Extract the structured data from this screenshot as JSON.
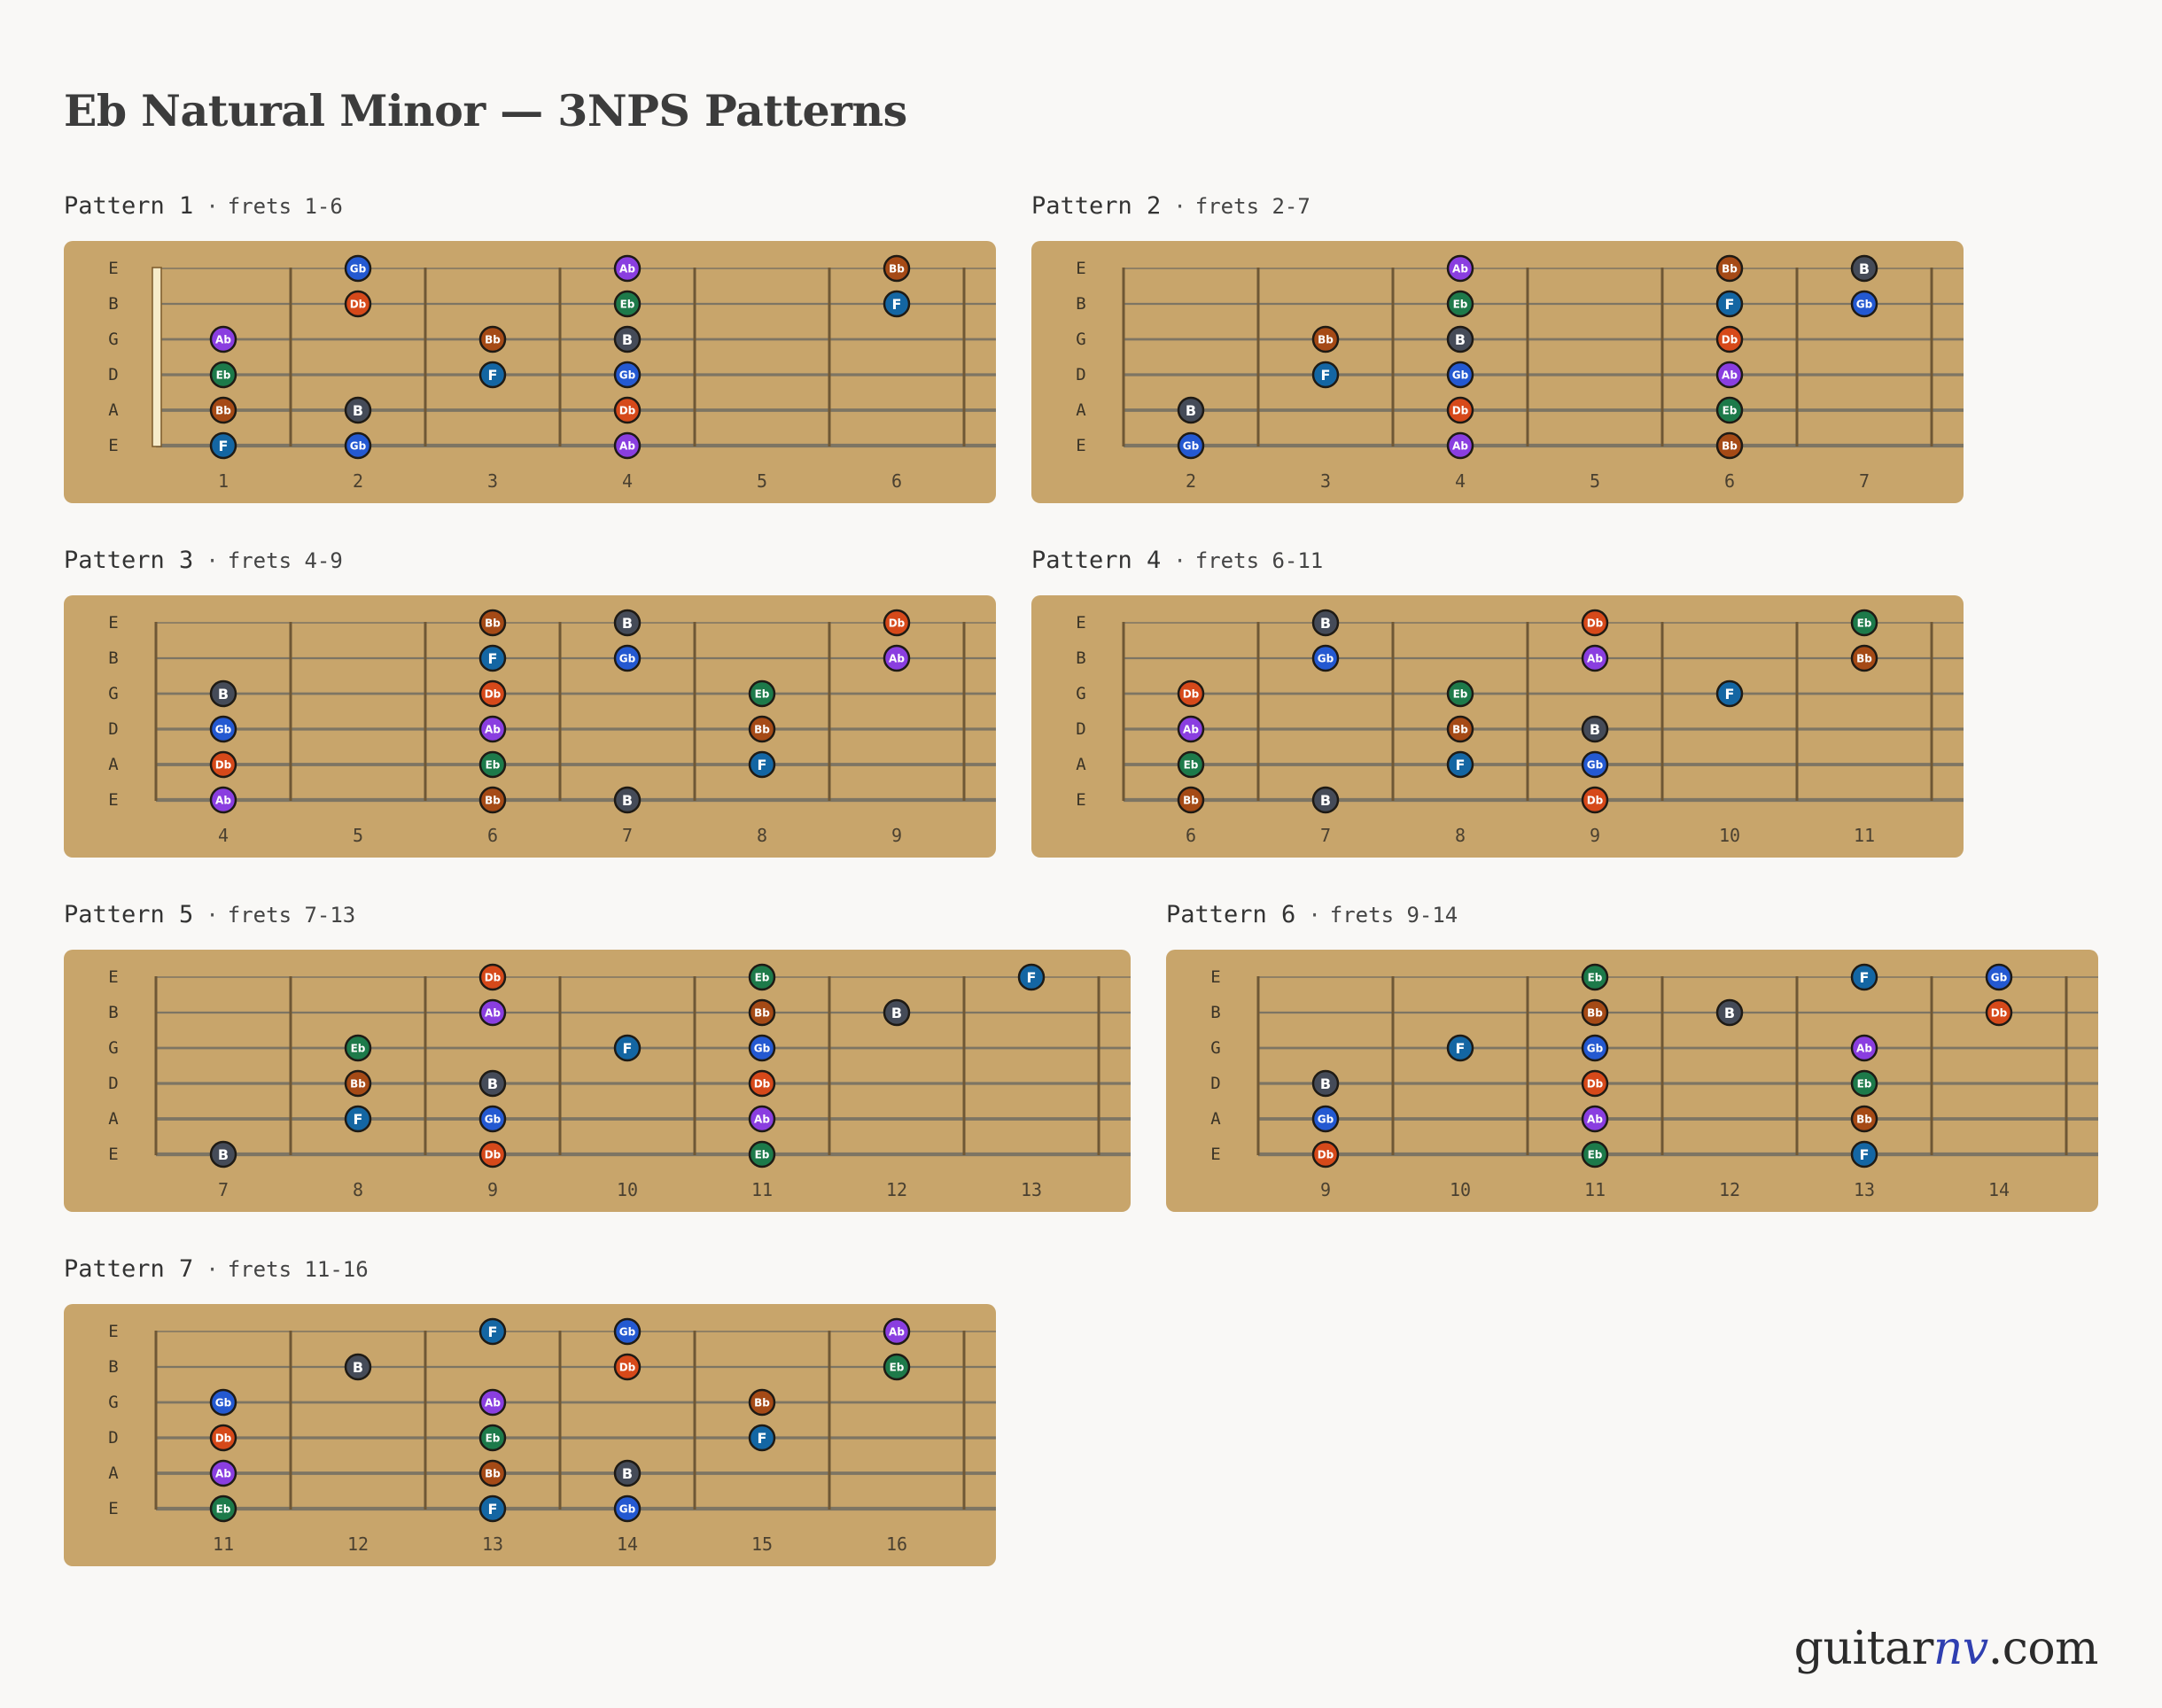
{
  "title": "Eb Natural Minor — 3NPS Patterns",
  "brand": {
    "prefix": "guitar",
    "accent": "nv",
    "suffix": ".com"
  },
  "strings": [
    "E",
    "B",
    "G",
    "D",
    "A",
    "E"
  ],
  "note_colors": {
    "Eb": "#1d7a4a",
    "F": "#1466a3",
    "Gb": "#2459d1",
    "Ab": "#8a3ee0",
    "Bb": "#a54a16",
    "B": "#454b58",
    "Db": "#d6491a"
  },
  "patterns": [
    {
      "name": "Pattern 1",
      "range": "frets 1-6",
      "fret_numbers": [
        "1",
        "2",
        "3",
        "4",
        "5",
        "6"
      ],
      "nut": true,
      "notes": [
        {
          "string": 1,
          "fret": 2,
          "note": "Gb"
        },
        {
          "string": 1,
          "fret": 4,
          "note": "Ab"
        },
        {
          "string": 1,
          "fret": 6,
          "note": "Bb"
        },
        {
          "string": 2,
          "fret": 2,
          "note": "Db"
        },
        {
          "string": 2,
          "fret": 4,
          "note": "Eb"
        },
        {
          "string": 2,
          "fret": 6,
          "note": "F"
        },
        {
          "string": 3,
          "fret": 1,
          "note": "Ab"
        },
        {
          "string": 3,
          "fret": 3,
          "note": "Bb"
        },
        {
          "string": 3,
          "fret": 4,
          "note": "B"
        },
        {
          "string": 4,
          "fret": 1,
          "note": "Eb"
        },
        {
          "string": 4,
          "fret": 3,
          "note": "F"
        },
        {
          "string": 4,
          "fret": 4,
          "note": "Gb"
        },
        {
          "string": 5,
          "fret": 1,
          "note": "Bb"
        },
        {
          "string": 5,
          "fret": 2,
          "note": "B"
        },
        {
          "string": 5,
          "fret": 4,
          "note": "Db"
        },
        {
          "string": 6,
          "fret": 1,
          "note": "F"
        },
        {
          "string": 6,
          "fret": 2,
          "note": "Gb"
        },
        {
          "string": 6,
          "fret": 4,
          "note": "Ab"
        }
      ]
    },
    {
      "name": "Pattern 2",
      "range": "frets 2-7",
      "fret_numbers": [
        "2",
        "3",
        "4",
        "5",
        "6",
        "7"
      ],
      "nut": false,
      "notes": [
        {
          "string": 1,
          "fret": 4,
          "note": "Ab"
        },
        {
          "string": 1,
          "fret": 6,
          "note": "Bb"
        },
        {
          "string": 1,
          "fret": 7,
          "note": "B"
        },
        {
          "string": 2,
          "fret": 4,
          "note": "Eb"
        },
        {
          "string": 2,
          "fret": 6,
          "note": "F"
        },
        {
          "string": 2,
          "fret": 7,
          "note": "Gb"
        },
        {
          "string": 3,
          "fret": 3,
          "note": "Bb"
        },
        {
          "string": 3,
          "fret": 4,
          "note": "B"
        },
        {
          "string": 3,
          "fret": 6,
          "note": "Db"
        },
        {
          "string": 4,
          "fret": 3,
          "note": "F"
        },
        {
          "string": 4,
          "fret": 4,
          "note": "Gb"
        },
        {
          "string": 4,
          "fret": 6,
          "note": "Ab"
        },
        {
          "string": 5,
          "fret": 2,
          "note": "B"
        },
        {
          "string": 5,
          "fret": 4,
          "note": "Db"
        },
        {
          "string": 5,
          "fret": 6,
          "note": "Eb"
        },
        {
          "string": 6,
          "fret": 2,
          "note": "Gb"
        },
        {
          "string": 6,
          "fret": 4,
          "note": "Ab"
        },
        {
          "string": 6,
          "fret": 6,
          "note": "Bb"
        }
      ]
    },
    {
      "name": "Pattern 3",
      "range": "frets 4-9",
      "fret_numbers": [
        "4",
        "5",
        "6",
        "7",
        "8",
        "9"
      ],
      "nut": false,
      "notes": [
        {
          "string": 1,
          "fret": 6,
          "note": "Bb"
        },
        {
          "string": 1,
          "fret": 7,
          "note": "B"
        },
        {
          "string": 1,
          "fret": 9,
          "note": "Db"
        },
        {
          "string": 2,
          "fret": 6,
          "note": "F"
        },
        {
          "string": 2,
          "fret": 7,
          "note": "Gb"
        },
        {
          "string": 2,
          "fret": 9,
          "note": "Ab"
        },
        {
          "string": 3,
          "fret": 4,
          "note": "B"
        },
        {
          "string": 3,
          "fret": 6,
          "note": "Db"
        },
        {
          "string": 3,
          "fret": 8,
          "note": "Eb"
        },
        {
          "string": 4,
          "fret": 4,
          "note": "Gb"
        },
        {
          "string": 4,
          "fret": 6,
          "note": "Ab"
        },
        {
          "string": 4,
          "fret": 8,
          "note": "Bb"
        },
        {
          "string": 5,
          "fret": 4,
          "note": "Db"
        },
        {
          "string": 5,
          "fret": 6,
          "note": "Eb"
        },
        {
          "string": 5,
          "fret": 8,
          "note": "F"
        },
        {
          "string": 6,
          "fret": 4,
          "note": "Ab"
        },
        {
          "string": 6,
          "fret": 6,
          "note": "Bb"
        },
        {
          "string": 6,
          "fret": 7,
          "note": "B"
        }
      ]
    },
    {
      "name": "Pattern 4",
      "range": "frets 6-11",
      "fret_numbers": [
        "6",
        "7",
        "8",
        "9",
        "10",
        "11"
      ],
      "nut": false,
      "notes": [
        {
          "string": 1,
          "fret": 7,
          "note": "B"
        },
        {
          "string": 1,
          "fret": 9,
          "note": "Db"
        },
        {
          "string": 1,
          "fret": 11,
          "note": "Eb"
        },
        {
          "string": 2,
          "fret": 7,
          "note": "Gb"
        },
        {
          "string": 2,
          "fret": 9,
          "note": "Ab"
        },
        {
          "string": 2,
          "fret": 11,
          "note": "Bb"
        },
        {
          "string": 3,
          "fret": 6,
          "note": "Db"
        },
        {
          "string": 3,
          "fret": 8,
          "note": "Eb"
        },
        {
          "string": 3,
          "fret": 10,
          "note": "F"
        },
        {
          "string": 4,
          "fret": 6,
          "note": "Ab"
        },
        {
          "string": 4,
          "fret": 8,
          "note": "Bb"
        },
        {
          "string": 4,
          "fret": 9,
          "note": "B"
        },
        {
          "string": 5,
          "fret": 6,
          "note": "Eb"
        },
        {
          "string": 5,
          "fret": 8,
          "note": "F"
        },
        {
          "string": 5,
          "fret": 9,
          "note": "Gb"
        },
        {
          "string": 6,
          "fret": 6,
          "note": "Bb"
        },
        {
          "string": 6,
          "fret": 7,
          "note": "B"
        },
        {
          "string": 6,
          "fret": 9,
          "note": "Db"
        }
      ]
    },
    {
      "name": "Pattern 5",
      "range": "frets 7-13",
      "fret_numbers": [
        "7",
        "8",
        "9",
        "10",
        "11",
        "12",
        "13"
      ],
      "nut": false,
      "notes": [
        {
          "string": 1,
          "fret": 9,
          "note": "Db"
        },
        {
          "string": 1,
          "fret": 11,
          "note": "Eb"
        },
        {
          "string": 1,
          "fret": 13,
          "note": "F"
        },
        {
          "string": 2,
          "fret": 9,
          "note": "Ab"
        },
        {
          "string": 2,
          "fret": 11,
          "note": "Bb"
        },
        {
          "string": 2,
          "fret": 12,
          "note": "B"
        },
        {
          "string": 3,
          "fret": 8,
          "note": "Eb"
        },
        {
          "string": 3,
          "fret": 10,
          "note": "F"
        },
        {
          "string": 3,
          "fret": 11,
          "note": "Gb"
        },
        {
          "string": 4,
          "fret": 8,
          "note": "Bb"
        },
        {
          "string": 4,
          "fret": 9,
          "note": "B"
        },
        {
          "string": 4,
          "fret": 11,
          "note": "Db"
        },
        {
          "string": 5,
          "fret": 8,
          "note": "F"
        },
        {
          "string": 5,
          "fret": 9,
          "note": "Gb"
        },
        {
          "string": 5,
          "fret": 11,
          "note": "Ab"
        },
        {
          "string": 6,
          "fret": 7,
          "note": "B"
        },
        {
          "string": 6,
          "fret": 9,
          "note": "Db"
        },
        {
          "string": 6,
          "fret": 11,
          "note": "Eb"
        }
      ]
    },
    {
      "name": "Pattern 6",
      "range": "frets 9-14",
      "fret_numbers": [
        "9",
        "10",
        "11",
        "12",
        "13",
        "14"
      ],
      "nut": false,
      "notes": [
        {
          "string": 1,
          "fret": 11,
          "note": "Eb"
        },
        {
          "string": 1,
          "fret": 13,
          "note": "F"
        },
        {
          "string": 1,
          "fret": 14,
          "note": "Gb"
        },
        {
          "string": 2,
          "fret": 11,
          "note": "Bb"
        },
        {
          "string": 2,
          "fret": 12,
          "note": "B"
        },
        {
          "string": 2,
          "fret": 14,
          "note": "Db"
        },
        {
          "string": 3,
          "fret": 10,
          "note": "F"
        },
        {
          "string": 3,
          "fret": 11,
          "note": "Gb"
        },
        {
          "string": 3,
          "fret": 13,
          "note": "Ab"
        },
        {
          "string": 4,
          "fret": 9,
          "note": "B"
        },
        {
          "string": 4,
          "fret": 11,
          "note": "Db"
        },
        {
          "string": 4,
          "fret": 13,
          "note": "Eb"
        },
        {
          "string": 5,
          "fret": 9,
          "note": "Gb"
        },
        {
          "string": 5,
          "fret": 11,
          "note": "Ab"
        },
        {
          "string": 5,
          "fret": 13,
          "note": "Bb"
        },
        {
          "string": 6,
          "fret": 9,
          "note": "Db"
        },
        {
          "string": 6,
          "fret": 11,
          "note": "Eb"
        },
        {
          "string": 6,
          "fret": 13,
          "note": "F"
        }
      ]
    },
    {
      "name": "Pattern 7",
      "range": "frets 11-16",
      "fret_numbers": [
        "11",
        "12",
        "13",
        "14",
        "15",
        "16"
      ],
      "nut": false,
      "notes": [
        {
          "string": 1,
          "fret": 13,
          "note": "F"
        },
        {
          "string": 1,
          "fret": 14,
          "note": "Gb"
        },
        {
          "string": 1,
          "fret": 16,
          "note": "Ab"
        },
        {
          "string": 2,
          "fret": 12,
          "note": "B"
        },
        {
          "string": 2,
          "fret": 14,
          "note": "Db"
        },
        {
          "string": 2,
          "fret": 16,
          "note": "Eb"
        },
        {
          "string": 3,
          "fret": 11,
          "note": "Gb"
        },
        {
          "string": 3,
          "fret": 13,
          "note": "Ab"
        },
        {
          "string": 3,
          "fret": 15,
          "note": "Bb"
        },
        {
          "string": 4,
          "fret": 11,
          "note": "Db"
        },
        {
          "string": 4,
          "fret": 13,
          "note": "Eb"
        },
        {
          "string": 4,
          "fret": 15,
          "note": "F"
        },
        {
          "string": 5,
          "fret": 11,
          "note": "Ab"
        },
        {
          "string": 5,
          "fret": 13,
          "note": "Bb"
        },
        {
          "string": 5,
          "fret": 14,
          "note": "B"
        },
        {
          "string": 6,
          "fret": 11,
          "note": "Eb"
        },
        {
          "string": 6,
          "fret": 13,
          "note": "F"
        },
        {
          "string": 6,
          "fret": 14,
          "note": "Gb"
        }
      ]
    }
  ]
}
